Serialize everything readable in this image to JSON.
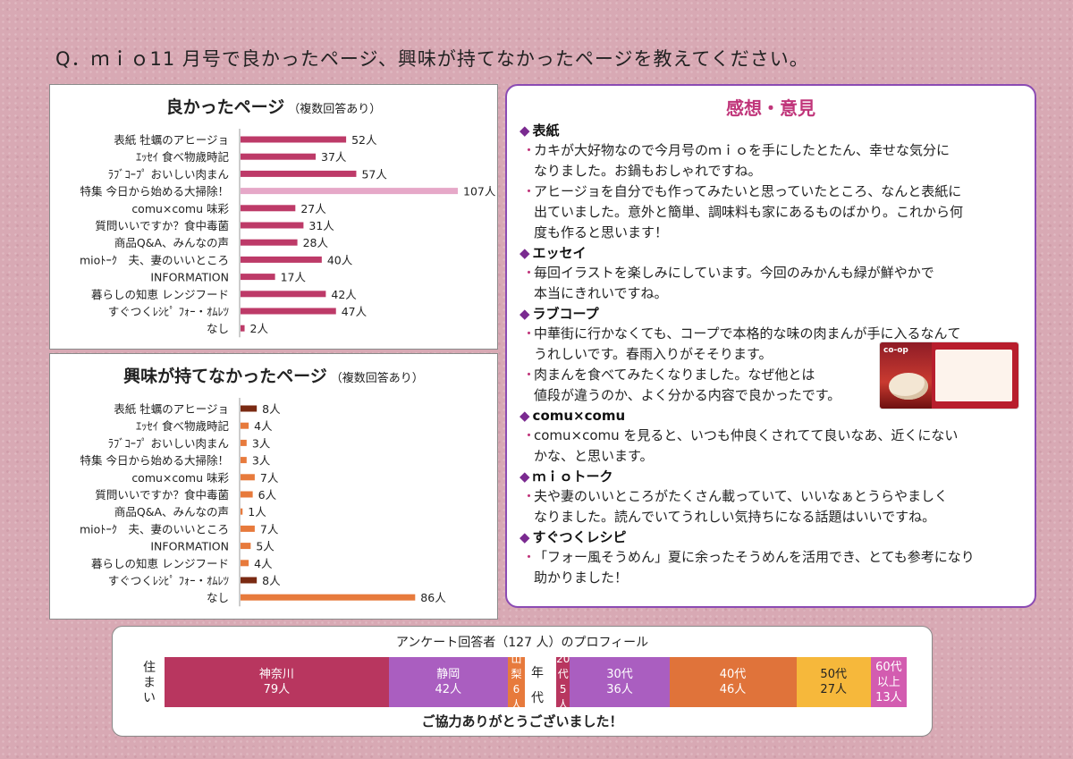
{
  "question": "Q．ｍｉｏ11 月号で良かったページ、興味が持てなかったページを教えてください。",
  "colors": {
    "good_bar": "#bd3a68",
    "good_highlight": "#e6a8c8",
    "bad_bar": "#e77a3c",
    "bad_dark": "#7a2a12",
    "kanagawa": "#b8365f",
    "shizuoka": "#aa5ec0",
    "yamanashi": "#e77a3c",
    "age20": "#b8365f",
    "age30": "#aa5ec0",
    "age40": "#e0733a",
    "age50": "#f6b83b",
    "age60": "#d35cb0"
  },
  "chart_data": [
    {
      "type": "bar",
      "orientation": "horizontal",
      "title": "良かったページ",
      "subtitle": "（複数回答あり）",
      "categories": [
        "表紙 牡蠣のアヒージョ",
        "ｴｯｾｲ 食べ物歳時記",
        "ﾗﾌﾞｺｰﾌﾟ おいしい肉まん",
        "特集 今日から始める大掃除！",
        "comu×comu 味彩",
        "質問いいですか？食中毒菌",
        "商品Q&A、みんなの声",
        "mioﾄｰｸ　夫、妻のいいところ",
        "INFORMATION",
        "暮らしの知恵 レンジフード",
        "すぐつくﾚｼﾋﾟ ﾌｫｰ・ｵﾑﾚﾂ",
        "なし"
      ],
      "values": [
        52,
        37,
        57,
        107,
        27,
        31,
        28,
        40,
        17,
        42,
        47,
        2
      ],
      "value_labels": [
        "52人",
        "37人",
        "57人",
        "107人",
        "27人",
        "31人",
        "28人",
        "40人",
        "17人",
        "42人",
        "47人",
        "2人"
      ],
      "highlight_index": 3,
      "xlim": [
        0,
        107
      ]
    },
    {
      "type": "bar",
      "orientation": "horizontal",
      "title": "興味が持てなかったページ",
      "subtitle": "（複数回答あり）",
      "categories": [
        "表紙 牡蠣のアヒージョ",
        "ｴｯｾｲ 食べ物歳時記",
        "ﾗﾌﾞｺｰﾌﾟ おいしい肉まん",
        "特集 今日から始める大掃除！",
        "comu×comu 味彩",
        "質問いいですか？食中毒菌",
        "商品Q&A、みんなの声",
        "mioﾄｰｸ　夫、妻のいいところ",
        "INFORMATION",
        "暮らしの知恵 レンジフード",
        "すぐつくﾚｼﾋﾟ ﾌｫｰ・ｵﾑﾚﾂ",
        "なし"
      ],
      "values": [
        8,
        4,
        3,
        3,
        7,
        6,
        1,
        7,
        5,
        4,
        8,
        86
      ],
      "value_labels": [
        "8人",
        "4人",
        "3人",
        "3人",
        "7人",
        "6人",
        "1人",
        "7人",
        "5人",
        "4人",
        "8人",
        "86人"
      ],
      "dark_indices": [
        0,
        10
      ],
      "xlim": [
        0,
        107
      ]
    }
  ],
  "comments": {
    "title": "感想・意見",
    "sections": [
      {
        "heading": "表紙",
        "items": [
          [
            "カキが大好物なので今月号のｍｉｏを手にしたとたん、幸せな気分に",
            "なりました。お鍋もおしゃれですね。"
          ],
          [
            "アヒージョを自分でも作ってみたいと思っていたところ、なんと表紙に",
            "出ていました。意外と簡単、調味料も家にあるものばかり。これから何",
            "度も作ると思います！"
          ]
        ]
      },
      {
        "heading": "エッセイ",
        "items": [
          [
            "毎回イラストを楽しみにしています。今回のみかんも緑が鮮やかで",
            "本当にきれいですね。"
          ]
        ]
      },
      {
        "heading": "ラブコープ",
        "items": [
          [
            "中華街に行かなくても、コープで本格的な味の肉まんが手に入るなんて",
            "うれしいです。春雨入りがそそります。"
          ],
          [
            "肉まんを食べてみたくなりました。なぜ他とは",
            "値段が違うのか、よく分かる内容で良かったです。"
          ]
        ]
      },
      {
        "heading": "comu×comu",
        "items": [
          [
            "comu×comu を見ると、いつも仲良くされてて良いなあ、近くにない",
            "かな、と思います。"
          ]
        ]
      },
      {
        "heading": "ｍｉｏトーク",
        "items": [
          [
            "夫や妻のいいところがたくさん載っていて、いいなぁとうらやましく",
            "なりました。読んでいてうれしい気持ちになる話題はいいですね。"
          ]
        ]
      },
      {
        "heading": "すぐつくレシピ",
        "items": [
          [
            "「フォー風そうめん」夏に余ったそうめんを活用でき、とても参考になり",
            "助かりました！"
          ]
        ]
      }
    ],
    "product_brand": "co-op"
  },
  "profile": {
    "title": "アンケート回答者（127 人）のプロフィール",
    "thanks": "ご協力ありがとうございました！",
    "residence_label": [
      "住",
      "ま",
      "い"
    ],
    "age_label": [
      "年",
      "代"
    ],
    "residence": [
      {
        "name": "神奈川",
        "count": "79人",
        "value": 79
      },
      {
        "name": "静岡",
        "count": "42人",
        "value": 42
      },
      {
        "name": "山梨",
        "count": "6人",
        "value": 6
      }
    ],
    "age": [
      {
        "name": "20代",
        "count": "5人",
        "value": 5
      },
      {
        "name": "30代",
        "count": "36人",
        "value": 36
      },
      {
        "name": "40代",
        "count": "46人",
        "value": 46
      },
      {
        "name": "50代",
        "count": "27人",
        "value": 27
      },
      {
        "name": "60代以上",
        "count": "13人",
        "value": 13
      }
    ]
  }
}
